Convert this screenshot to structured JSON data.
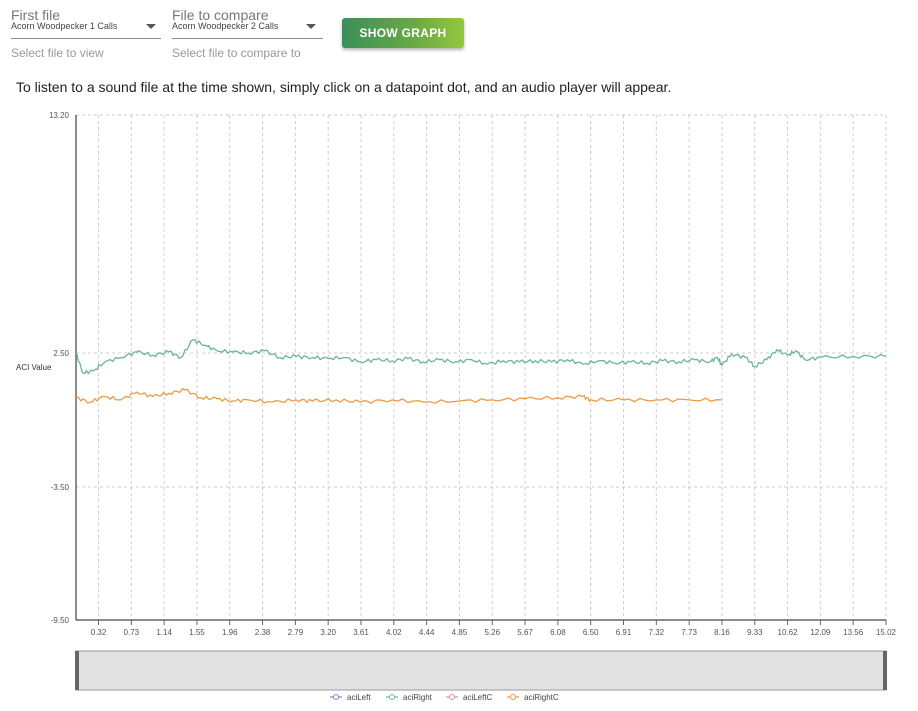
{
  "form": {
    "first_file": {
      "label": "First file",
      "value": "Acorn Woodpecker 1 Calls",
      "helper": "Select file to view"
    },
    "compare_file": {
      "label": "File to compare",
      "value": "Acorn Woodpecker 2 Calls",
      "helper": "Select file to compare to"
    },
    "show_graph_label": "SHOW GRAPH"
  },
  "instructions": "To listen to a sound file at the time shown, simply click on a datapoint dot, and an audio player will appear.",
  "colors": {
    "aciLeft": "#8b7fd4",
    "aciRight": "#6cb598",
    "aciLeftC": "#ef8f8f",
    "aciRightC": "#ee9a45",
    "grid": "#cccccc"
  },
  "chart_data": {
    "type": "line",
    "ylabel": "ACI Value",
    "yticks": [
      "13.20",
      "2.50",
      "-3.50",
      "-9.50"
    ],
    "ylim": [
      -9.5,
      13.2
    ],
    "ytick_scale": "piecewise",
    "xticks": [
      "0.32",
      "0.73",
      "1.14",
      "1.55",
      "1.96",
      "2.38",
      "2.79",
      "3.20",
      "3.61",
      "4.02",
      "4.44",
      "4.85",
      "5.26",
      "5.67",
      "6.08",
      "6.50",
      "6.91",
      "7.32",
      "7.73",
      "8.16",
      "9.33",
      "10.62",
      "12.09",
      "13.56",
      "15.02"
    ],
    "legend_position": "bottom",
    "series": [
      {
        "name": "aciLeft",
        "color": "#8b7fd4",
        "values": []
      },
      {
        "name": "aciRight",
        "color": "#6cb598",
        "values": [
          {
            "x": 0.0,
            "y": 2.5
          },
          {
            "x": 0.1,
            "y": 1.6
          },
          {
            "x": 0.25,
            "y": 1.7
          },
          {
            "x": 0.4,
            "y": 2.1
          },
          {
            "x": 0.6,
            "y": 2.3
          },
          {
            "x": 0.8,
            "y": 2.55
          },
          {
            "x": 1.0,
            "y": 2.4
          },
          {
            "x": 1.2,
            "y": 2.55
          },
          {
            "x": 1.35,
            "y": 2.3
          },
          {
            "x": 1.5,
            "y": 3.1
          },
          {
            "x": 1.65,
            "y": 2.85
          },
          {
            "x": 1.8,
            "y": 2.6
          },
          {
            "x": 2.0,
            "y": 2.55
          },
          {
            "x": 2.2,
            "y": 2.5
          },
          {
            "x": 2.4,
            "y": 2.6
          },
          {
            "x": 2.6,
            "y": 2.3
          },
          {
            "x": 2.8,
            "y": 2.35
          },
          {
            "x": 3.0,
            "y": 2.3
          },
          {
            "x": 3.2,
            "y": 2.25
          },
          {
            "x": 3.4,
            "y": 2.3
          },
          {
            "x": 3.6,
            "y": 2.1
          },
          {
            "x": 3.8,
            "y": 2.2
          },
          {
            "x": 4.0,
            "y": 2.15
          },
          {
            "x": 4.2,
            "y": 2.25
          },
          {
            "x": 4.4,
            "y": 2.1
          },
          {
            "x": 4.6,
            "y": 2.2
          },
          {
            "x": 4.8,
            "y": 2.1
          },
          {
            "x": 5.0,
            "y": 2.2
          },
          {
            "x": 5.2,
            "y": 2.0
          },
          {
            "x": 5.4,
            "y": 2.15
          },
          {
            "x": 5.6,
            "y": 2.1
          },
          {
            "x": 5.8,
            "y": 2.15
          },
          {
            "x": 6.0,
            "y": 2.1
          },
          {
            "x": 6.2,
            "y": 2.2
          },
          {
            "x": 6.4,
            "y": 2.0
          },
          {
            "x": 6.6,
            "y": 2.15
          },
          {
            "x": 6.8,
            "y": 2.05
          },
          {
            "x": 7.0,
            "y": 2.1
          },
          {
            "x": 7.2,
            "y": 2.05
          },
          {
            "x": 7.4,
            "y": 2.15
          },
          {
            "x": 7.6,
            "y": 2.1
          },
          {
            "x": 7.8,
            "y": 2.2
          },
          {
            "x": 8.0,
            "y": 2.1
          },
          {
            "x": 8.1,
            "y": 2.3
          },
          {
            "x": 8.16,
            "y": 1.95
          },
          {
            "x": 8.5,
            "y": 2.45
          },
          {
            "x": 9.0,
            "y": 2.3
          },
          {
            "x": 9.33,
            "y": 1.9
          },
          {
            "x": 9.8,
            "y": 2.2
          },
          {
            "x": 10.2,
            "y": 2.65
          },
          {
            "x": 10.62,
            "y": 2.4
          },
          {
            "x": 11.0,
            "y": 2.6
          },
          {
            "x": 11.4,
            "y": 2.2
          },
          {
            "x": 12.09,
            "y": 2.3
          },
          {
            "x": 13.56,
            "y": 2.35
          },
          {
            "x": 15.02,
            "y": 2.35
          }
        ]
      },
      {
        "name": "aciLeftC",
        "color": "#ef8f8f",
        "values": []
      },
      {
        "name": "aciRightC",
        "color": "#ee9a45",
        "values": [
          {
            "x": 0.0,
            "y": 0.5
          },
          {
            "x": 0.2,
            "y": 0.3
          },
          {
            "x": 0.4,
            "y": 0.55
          },
          {
            "x": 0.6,
            "y": 0.4
          },
          {
            "x": 0.8,
            "y": 0.75
          },
          {
            "x": 1.0,
            "y": 0.55
          },
          {
            "x": 1.2,
            "y": 0.7
          },
          {
            "x": 1.4,
            "y": 0.85
          },
          {
            "x": 1.6,
            "y": 0.5
          },
          {
            "x": 1.8,
            "y": 0.45
          },
          {
            "x": 2.0,
            "y": 0.35
          },
          {
            "x": 2.2,
            "y": 0.4
          },
          {
            "x": 2.5,
            "y": 0.3
          },
          {
            "x": 2.8,
            "y": 0.4
          },
          {
            "x": 3.0,
            "y": 0.35
          },
          {
            "x": 3.3,
            "y": 0.4
          },
          {
            "x": 3.6,
            "y": 0.3
          },
          {
            "x": 4.0,
            "y": 0.4
          },
          {
            "x": 4.4,
            "y": 0.3
          },
          {
            "x": 4.85,
            "y": 0.35
          },
          {
            "x": 5.26,
            "y": 0.4
          },
          {
            "x": 5.67,
            "y": 0.45
          },
          {
            "x": 6.08,
            "y": 0.5
          },
          {
            "x": 6.4,
            "y": 0.55
          },
          {
            "x": 6.5,
            "y": 0.4
          },
          {
            "x": 6.91,
            "y": 0.4
          },
          {
            "x": 7.32,
            "y": 0.4
          },
          {
            "x": 7.73,
            "y": 0.4
          },
          {
            "x": 8.16,
            "y": 0.4
          }
        ]
      }
    ]
  }
}
